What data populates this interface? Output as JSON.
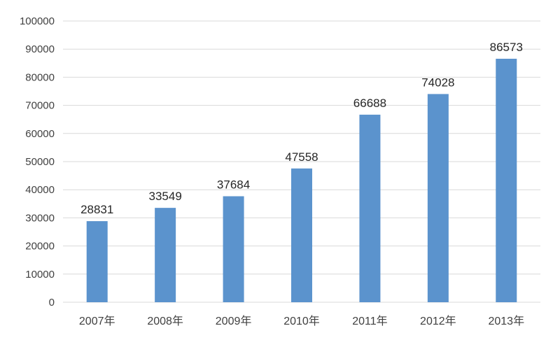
{
  "chart_data": {
    "type": "bar",
    "title": "",
    "xlabel": "",
    "ylabel": "",
    "categories": [
      "2007年",
      "2008年",
      "2009年",
      "2010年",
      "2011年",
      "2012年",
      "2013年"
    ],
    "values": [
      28831,
      33549,
      37684,
      47558,
      66688,
      74028,
      86573
    ],
    "data_labels": [
      "28831",
      "33549",
      "37684",
      "47558",
      "66688",
      "74028",
      "86573"
    ],
    "ylim": [
      0,
      100000
    ],
    "yticks": [
      0,
      10000,
      20000,
      30000,
      40000,
      50000,
      60000,
      70000,
      80000,
      90000,
      100000
    ],
    "ytick_labels": [
      "0",
      "10000",
      "20000",
      "30000",
      "40000",
      "50000",
      "60000",
      "70000",
      "80000",
      "90000",
      "100000"
    ],
    "grid": true,
    "legend": "none",
    "bar_color": "#5b93cd",
    "grid_color": "#d9d9d9"
  }
}
